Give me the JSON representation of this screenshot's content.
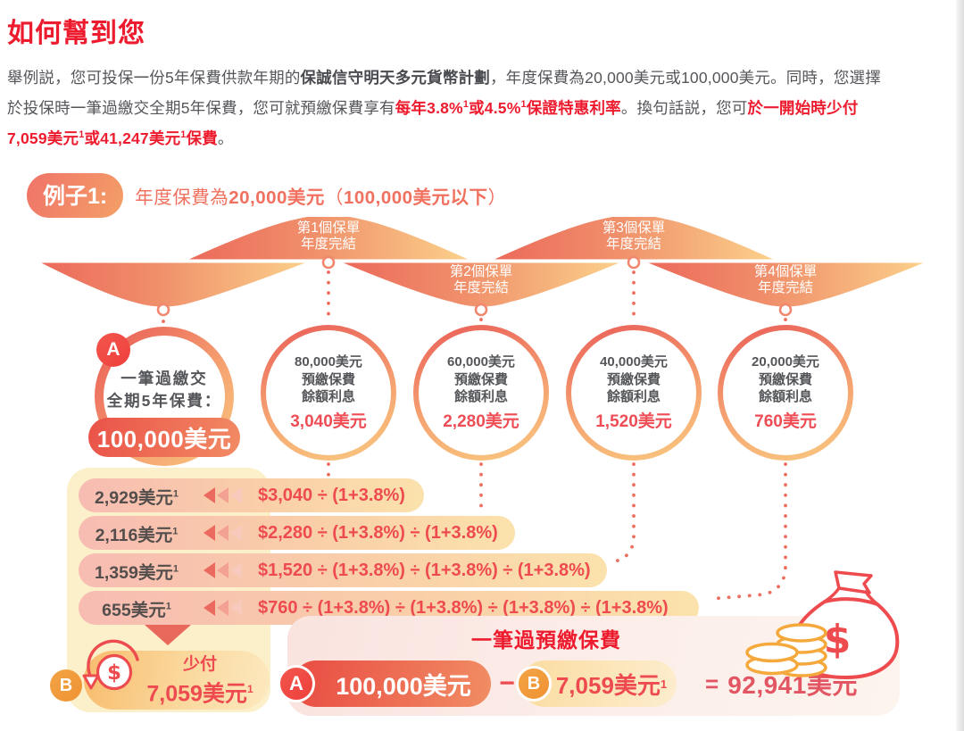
{
  "page": {
    "title": "如何幫到您",
    "intro_segments": [
      {
        "t": "舉例説，您可投保一份5年保費供款年期的",
        "s": "n"
      },
      {
        "t": "保誠信守明天多元貨幣計劃",
        "s": "b"
      },
      {
        "t": "，年度保費為20,000美元或100,000美元。同時，您選擇",
        "s": "n"
      },
      {
        "s": "br"
      },
      {
        "t": "於投保時一筆過繳交全期5年保費，您可就預繳保費享有",
        "s": "n"
      },
      {
        "t": "每年3.8%",
        "s": "rb"
      },
      {
        "t": "1",
        "s": "rsup"
      },
      {
        "t": "或4.5%",
        "s": "rb"
      },
      {
        "t": "1",
        "s": "rsup"
      },
      {
        "t": "保證特惠利率",
        "s": "rb"
      },
      {
        "t": "。換句話説，您可",
        "s": "n"
      },
      {
        "t": "於一開始時少付",
        "s": "rb"
      },
      {
        "s": "br"
      },
      {
        "t": "7,059美元",
        "s": "rb"
      },
      {
        "t": "1",
        "s": "rsup"
      },
      {
        "t": "或41,247美元",
        "s": "rb"
      },
      {
        "t": "1",
        "s": "rsup"
      },
      {
        "t": "保費",
        "s": "rb"
      },
      {
        "t": "。",
        "s": "n"
      }
    ],
    "example_badge": "例子1:",
    "example_subtitle_segments": [
      {
        "t": "年度保費為",
        "s": "n"
      },
      {
        "t": "20,000美元",
        "s": "b"
      },
      {
        "t": "（",
        "s": "n"
      },
      {
        "t": "100,000美元以下",
        "s": "b"
      },
      {
        "t": "）",
        "s": "n"
      }
    ]
  },
  "timeline": {
    "milestones": [
      {
        "line1": "第1個保單",
        "line2": "年度完結"
      },
      {
        "line1": "第2個保單",
        "line2": "年度完結"
      },
      {
        "line1": "第3個保單",
        "line2": "年度完結"
      },
      {
        "line1": "第4個保單",
        "line2": "年度完結"
      }
    ]
  },
  "circles": {
    "lump_sum": {
      "badge": "A",
      "line1": "一筆過繳交",
      "line2": "全期5年保費：",
      "amount": "100,000美元"
    },
    "interest_circles": [
      {
        "l1": "80,000美元",
        "l2": "預繳保費",
        "l3": "餘額利息",
        "interest": "3,040美元"
      },
      {
        "l1": "60,000美元",
        "l2": "預繳保費",
        "l3": "餘額利息",
        "interest": "2,280美元"
      },
      {
        "l1": "40,000美元",
        "l2": "預繳保費",
        "l3": "餘額利息",
        "interest": "1,520美元"
      },
      {
        "l1": "20,000美元",
        "l2": "預繳保費",
        "l3": "餘額利息",
        "interest": "760美元"
      }
    ]
  },
  "discount_rows": [
    {
      "amount": "2,929美元",
      "sup": "1",
      "formula": "$3,040 ÷ (1+3.8%)"
    },
    {
      "amount": "2,116美元",
      "sup": "1",
      "formula": "$2,280 ÷ (1+3.8%) ÷ (1+3.8%)"
    },
    {
      "amount": "1,359美元",
      "sup": "1",
      "formula": "$1,520 ÷ (1+3.8%) ÷ (1+3.8%) ÷ (1+3.8%)"
    },
    {
      "amount": "655美元",
      "sup": "1",
      "formula": "$760 ÷ (1+3.8%) ÷ (1+3.8%) ÷ (1+3.8%) ÷ (1+3.8%)"
    }
  ],
  "savings": {
    "badge": "B",
    "label": "少付",
    "amount": "7,059美元",
    "sup": "1"
  },
  "summary": {
    "title": "一筆過預繳保費",
    "badge_a": "A",
    "amount_a": "100,000美元",
    "minus": "−",
    "badge_b": "B",
    "amount_b": "7,059美元",
    "sup_b": "1",
    "equals": "=",
    "result": "92,941美元"
  },
  "icons": {
    "dollar": "$"
  },
  "colors": {
    "brand_red": "#ED1B2E",
    "coral": "#EC6A5C",
    "orange": "#F0973B",
    "peach_yellow": "#FBD38B",
    "formula_red": "#EE4B50",
    "result_rose": "#E25562",
    "backdrop_yellow": "#FCF0CA",
    "panel_pink": "#FAE3DF"
  }
}
